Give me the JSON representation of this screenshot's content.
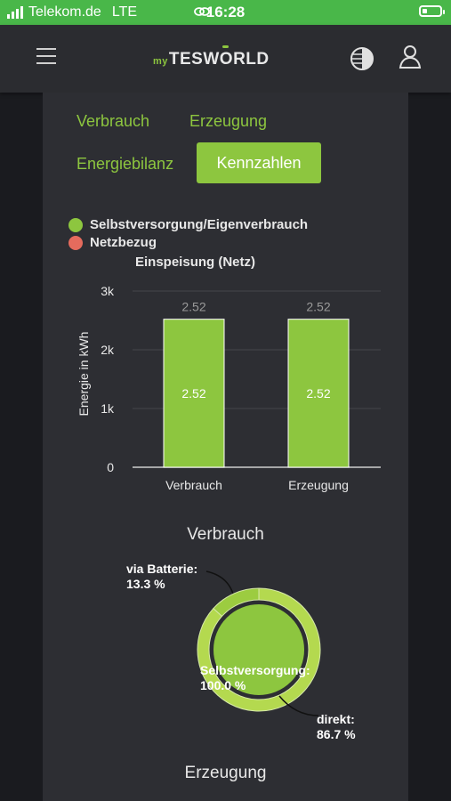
{
  "status": {
    "carrier": "Telekom.de",
    "network": "LTE",
    "time": "16:28"
  },
  "header": {
    "logo_prefix": "my",
    "logo_part1": "TESW",
    "logo_part2": "O",
    "logo_part3": "RLD"
  },
  "tabs": [
    {
      "label": "Verbrauch"
    },
    {
      "label": "Erzeugung"
    },
    {
      "label": "Energiebilanz"
    },
    {
      "label": "Kennzahlen"
    }
  ],
  "legend": [
    {
      "label": "Selbstversorgung/Eigenverbrauch",
      "color": "#8dc63f"
    },
    {
      "label": "Netzbezug",
      "color": "#e56b5d"
    },
    {
      "label": "Einspeisung (Netz)",
      "color": ""
    }
  ],
  "chart_data": {
    "type": "bar",
    "categories": [
      "Verbrauch",
      "Erzeugung"
    ],
    "series": [
      {
        "name": "Selbstversorgung/Eigenverbrauch",
        "values": [
          2.52,
          2.52
        ],
        "color": "#8dc63f"
      }
    ],
    "data_labels_inside": [
      "2.52",
      "2.52"
    ],
    "data_labels_top": [
      "2.52",
      "2.52"
    ],
    "ylabel": "Energie in kWh",
    "yticks": [
      "0",
      "1k",
      "2k",
      "3k"
    ],
    "ylim": [
      0,
      3000
    ],
    "bar_values_wh": [
      2520,
      2520
    ],
    "grid": true
  },
  "verbrauch_section": {
    "title": "Verbrauch",
    "donut": {
      "slices": [
        {
          "label": "via Batterie:",
          "value_text": "13.3 %",
          "value": 13.3,
          "color": "#9ccc40"
        },
        {
          "label": "direkt:",
          "value_text": "86.7 %",
          "value": 86.7,
          "color": "#b4d94f"
        }
      ],
      "center_label": "Selbstversorgung:",
      "center_value": "100.0 %",
      "center_value_num": 100,
      "center_color": "#8dc63f"
    }
  },
  "erzeugung_section": {
    "title": "Erzeugung"
  }
}
